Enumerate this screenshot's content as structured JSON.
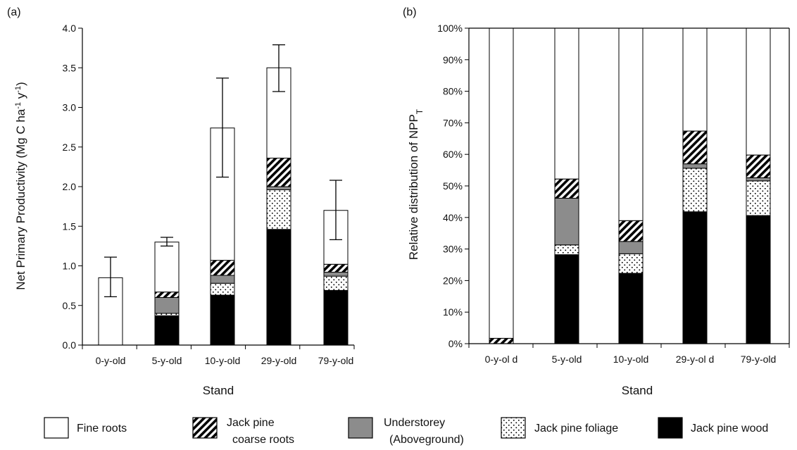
{
  "legend": [
    {
      "key": "fine_roots",
      "lines": [
        "Fine roots"
      ],
      "fill": "white"
    },
    {
      "key": "coarse_roots",
      "lines": [
        "Jack pine",
        "coarse roots"
      ],
      "fill": "hatch"
    },
    {
      "key": "understorey",
      "lines": [
        "Understorey",
        "(Aboveground)"
      ],
      "fill": "gray"
    },
    {
      "key": "foliage",
      "lines": [
        "Jack pine  foliage"
      ],
      "fill": "dots"
    },
    {
      "key": "wood",
      "lines": [
        "Jack pine  wood"
      ],
      "fill": "black"
    }
  ],
  "colors": {
    "understorey": "#8c8c8c",
    "wood": "#000000",
    "fine_roots": "#ffffff"
  },
  "chart_data": [
    {
      "type": "bar",
      "stacked": true,
      "panel_label": "(a)",
      "xlabel": "Stand",
      "ylabel": "Net Primary Productivity (Mg C ha-1 y-1)",
      "ylabel_parts": [
        "Net Primary Productivity (Mg C ha",
        "-1",
        " y",
        "-1",
        ")"
      ],
      "ylim": [
        0,
        4
      ],
      "yticks": [
        "0.0",
        "0.5",
        "1.0",
        "1.5",
        "2.0",
        "2.5",
        "3.0",
        "3.5",
        "4.0"
      ],
      "categories": [
        "0-y-old",
        "5-y-old",
        "10-y-old",
        "29-y-old",
        "79-y-old"
      ],
      "series": [
        {
          "key": "wood",
          "values": [
            0.0,
            0.37,
            0.63,
            1.46,
            0.69
          ]
        },
        {
          "key": "foliage",
          "values": [
            0.0,
            0.03,
            0.15,
            0.5,
            0.18
          ]
        },
        {
          "key": "understorey",
          "values": [
            0.0,
            0.2,
            0.1,
            0.04,
            0.05
          ]
        },
        {
          "key": "coarse_roots",
          "values": [
            0.0,
            0.07,
            0.19,
            0.36,
            0.1
          ]
        },
        {
          "key": "fine_roots",
          "values": [
            0.85,
            0.63,
            1.67,
            1.14,
            0.68
          ]
        }
      ],
      "totals": [
        0.85,
        1.3,
        2.74,
        3.5,
        1.7
      ],
      "error_bars": [
        {
          "low": 0.61,
          "high": 1.11
        },
        {
          "low": 1.25,
          "high": 1.36
        },
        {
          "low": 2.12,
          "high": 3.37
        },
        {
          "low": 3.2,
          "high": 3.79
        },
        {
          "low": 1.33,
          "high": 2.08
        }
      ]
    },
    {
      "type": "bar",
      "stacked": true,
      "panel_label": "(b)",
      "xlabel": "Stand",
      "ylabel": "Relative  distribution of NPPT",
      "ylabel_parts": [
        "Relative  distribution of NPP",
        "T"
      ],
      "ylim": [
        0,
        100
      ],
      "yticks": [
        "0%",
        "10%",
        "20%",
        "30%",
        "40%",
        "50%",
        "60%",
        "70%",
        "80%",
        "90%",
        "100%"
      ],
      "categories": [
        "0-y-ol d",
        "5-y-old",
        "10-y-old",
        "29-y-ol d",
        "79-y-old"
      ],
      "series": [
        {
          "key": "wood",
          "values": [
            0.0,
            28.2,
            22.3,
            41.8,
            40.6
          ]
        },
        {
          "key": "foliage",
          "values": [
            0.0,
            3.1,
            6.2,
            13.8,
            11.0
          ]
        },
        {
          "key": "understorey",
          "values": [
            0.0,
            14.8,
            3.9,
            1.4,
            1.0
          ]
        },
        {
          "key": "coarse_roots",
          "values": [
            1.7,
            6.1,
            6.6,
            10.4,
            7.2
          ]
        },
        {
          "key": "fine_roots",
          "values": [
            98.3,
            47.8,
            61.0,
            32.6,
            40.2
          ]
        }
      ]
    }
  ]
}
